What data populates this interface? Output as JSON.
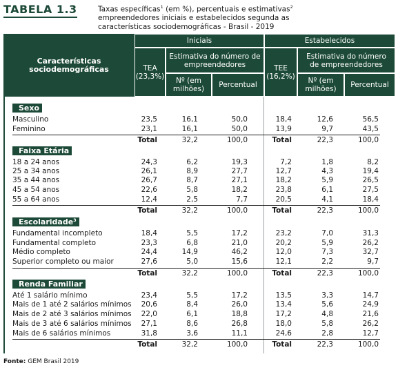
{
  "title": {
    "label": "TABELA  1.3",
    "line1_a": "Taxas específicas",
    "sup1": "1",
    "line1_b": " (em %), percentuais e estimativas",
    "sup2": "2",
    "line2": "empreendedores iniciais e estabelecidos segunda as",
    "line3": "características sociodemográficas - Brasil - 2019"
  },
  "header": {
    "characteristics": "Características sociodemográficas",
    "iniciais": "Iniciais",
    "estabelecidos": "Estabelecidos",
    "tea": "TEA (23,3%)",
    "tee": "TEE (16,2%)",
    "estimativa": "Estimativa do número de empreendedores",
    "numero": "Nº (em milhões)",
    "percentual": "Percentual"
  },
  "sections": [
    {
      "title": "Sexo",
      "sup": "",
      "rows": [
        [
          "Masculino",
          "23,5",
          "16,1",
          "50,0",
          "18,4",
          "12,6",
          "56,5"
        ],
        [
          "Feminino",
          "23,1",
          "16,1",
          "50,0",
          "13,9",
          "9,7",
          "43,5"
        ]
      ],
      "total": [
        "Total",
        "32,2",
        "100,0",
        "Total",
        "22,3",
        "100,0"
      ]
    },
    {
      "title": "Faixa Etária",
      "sup": "",
      "rows": [
        [
          "18 a 24 anos",
          "24,3",
          "6,2",
          "19,3",
          "7,2",
          "1,8",
          "8,2"
        ],
        [
          "25 a 34 anos",
          "26,1",
          "8,9",
          "27,7",
          "12,7",
          "4,3",
          "19,4"
        ],
        [
          "35 a 44 anos",
          "26,7",
          "8,7",
          "27,1",
          "18,2",
          "5,9",
          "26,5"
        ],
        [
          "45 a 54 anos",
          "22,6",
          "5,8",
          "18,2",
          "23,8",
          "6,1",
          "27,5"
        ],
        [
          "55 a 64 anos",
          "12,4",
          "2,5",
          "7,7",
          "20,5",
          "4,1",
          "18,4"
        ]
      ],
      "total": [
        "Total",
        "32,2",
        "100,0",
        "Total",
        "22,3",
        "100,0"
      ]
    },
    {
      "title": "Escolaridade",
      "sup": "3",
      "rows": [
        [
          "Fundamental incompleto",
          "18,4",
          "5,5",
          "17,2",
          "23,2",
          "7,0",
          "31,3"
        ],
        [
          "Fundamental completo",
          "23,3",
          "6,8",
          "21,0",
          "20,2",
          "5,9",
          "26,2"
        ],
        [
          "Médio completo",
          "24,4",
          "14,9",
          "46,2",
          "12,0",
          "7,3",
          "32,7"
        ],
        [
          "Superior completo ou maior",
          "27,6",
          "5,0",
          "15,6",
          "12,1",
          "2,2",
          "9,7"
        ]
      ],
      "total": [
        "Total",
        "32,2",
        "100,0",
        "Total",
        "22,3",
        "100,0"
      ]
    },
    {
      "title": "Renda Familiar",
      "sup": "",
      "rows": [
        [
          "Até 1 salário mínimo",
          "23,4",
          "5,5",
          "17,2",
          "13,5",
          "3,3",
          "14,7"
        ],
        [
          "Mais de 1 até 2 salários mínimos",
          "20,6",
          "8,4",
          "26,0",
          "13,4",
          "5,6",
          "24,9"
        ],
        [
          "Mais de 2 até 3 salários mínimos",
          "22,0",
          "6,1",
          "18,8",
          "17,2",
          "4,8",
          "21,6"
        ],
        [
          "Mais de 3 até 6 salários mínimos",
          "27,1",
          "8,6",
          "26,8",
          "18,0",
          "5,8",
          "26,2"
        ],
        [
          "Mais de 6 salários mínimos",
          "31,8",
          "3,6",
          "11,1",
          "24,6",
          "2,8",
          "12,7"
        ]
      ],
      "total": [
        "Total",
        "32,2",
        "100,0",
        "Total",
        "22,3",
        "100,0"
      ]
    }
  ],
  "source": {
    "label": "Fonte:",
    "text": " GEM Brasil 2019"
  },
  "colors": {
    "header_green": "#1d4a38"
  }
}
